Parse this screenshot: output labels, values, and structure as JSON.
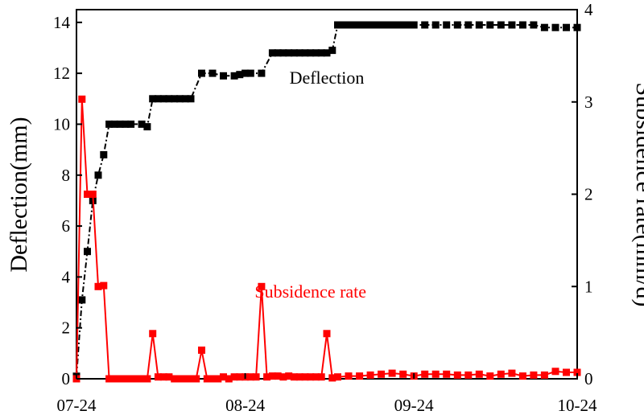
{
  "chart_data": {
    "type": "line",
    "x_tick_labels": [
      "07-24",
      "08-24",
      "09-24",
      "10-24"
    ],
    "x_tick_days": [
      0,
      31,
      62,
      92
    ],
    "x_range": [
      0,
      92
    ],
    "left_axis": {
      "label": "Deflection(mm)",
      "ylim": [
        0,
        14.5
      ],
      "ticks": [
        0,
        2,
        4,
        6,
        8,
        10,
        12,
        14
      ]
    },
    "right_axis": {
      "label": "Subsidence rate(mm/d)",
      "ylim": [
        0,
        4
      ],
      "ticks": [
        0,
        1,
        2,
        3,
        4
      ]
    },
    "grid": false,
    "series": [
      {
        "name": "Deflection",
        "axis": "left",
        "color": "#000000",
        "line_style": "dash-dot",
        "marker": "square",
        "x": [
          0,
          1,
          2,
          3,
          4,
          5,
          6,
          7,
          8,
          9,
          10,
          12,
          13,
          14,
          15,
          16,
          17,
          18,
          19,
          20,
          21,
          23,
          25,
          27,
          29,
          30,
          31,
          32,
          34,
          36,
          37,
          38,
          39,
          40,
          41,
          42,
          43,
          44,
          45,
          46,
          47,
          48,
          49,
          50,
          51,
          52,
          53,
          54,
          55,
          56,
          57,
          58,
          59,
          60,
          61,
          62,
          64,
          66,
          68,
          70,
          72,
          74,
          76,
          78,
          80,
          82,
          84,
          86,
          88,
          90,
          92
        ],
        "values": [
          0.1,
          3.1,
          5.0,
          7.0,
          8.0,
          8.8,
          10.0,
          10.0,
          10.0,
          10.0,
          10.0,
          10.0,
          9.9,
          11.0,
          11.0,
          11.0,
          11.0,
          11.0,
          11.0,
          11.0,
          11.0,
          12.0,
          12.0,
          11.9,
          11.9,
          11.95,
          12.0,
          12.0,
          12.0,
          12.8,
          12.8,
          12.8,
          12.8,
          12.8,
          12.8,
          12.8,
          12.8,
          12.8,
          12.8,
          12.8,
          12.9,
          13.9,
          13.9,
          13.9,
          13.9,
          13.9,
          13.9,
          13.9,
          13.9,
          13.9,
          13.9,
          13.9,
          13.9,
          13.9,
          13.9,
          13.9,
          13.9,
          13.9,
          13.9,
          13.9,
          13.9,
          13.9,
          13.9,
          13.9,
          13.9,
          13.9,
          13.9,
          13.8,
          13.8,
          13.8,
          13.8
        ]
      },
      {
        "name": "Subsidence rate",
        "axis": "right",
        "color": "#ff0000",
        "line_style": "solid",
        "marker": "square",
        "x": [
          0,
          1,
          2,
          3,
          4,
          5,
          6,
          7,
          8,
          9,
          10,
          11,
          12,
          13,
          14,
          15,
          16,
          17,
          18,
          19,
          20,
          21,
          22,
          23,
          24,
          25,
          26,
          27,
          28,
          29,
          30,
          31,
          32,
          33,
          34,
          35,
          36,
          37,
          38,
          39,
          40,
          41,
          42,
          43,
          44,
          45,
          46,
          47,
          48,
          50,
          52,
          54,
          56,
          58,
          60,
          62,
          64,
          66,
          68,
          70,
          72,
          74,
          76,
          78,
          80,
          82,
          84,
          86,
          88,
          90,
          92
        ],
        "values": [
          0.0,
          3.03,
          2.0,
          2.0,
          1.0,
          1.01,
          0.0,
          0.0,
          0.0,
          0.0,
          0.0,
          0.0,
          0.0,
          0.0,
          0.49,
          0.02,
          0.02,
          0.02,
          0.0,
          0.0,
          0.0,
          0.0,
          0.0,
          0.31,
          0.0,
          0.0,
          0.0,
          0.02,
          0.0,
          0.02,
          0.02,
          0.02,
          0.02,
          0.02,
          1.0,
          0.02,
          0.03,
          0.03,
          0.02,
          0.03,
          0.02,
          0.02,
          0.02,
          0.02,
          0.02,
          0.02,
          0.49,
          0.01,
          0.02,
          0.03,
          0.03,
          0.04,
          0.05,
          0.06,
          0.05,
          0.03,
          0.05,
          0.05,
          0.05,
          0.04,
          0.04,
          0.05,
          0.03,
          0.05,
          0.06,
          0.03,
          0.04,
          0.04,
          0.08,
          0.07,
          0.07
        ]
      }
    ],
    "annotations": [
      {
        "text": "Deflection",
        "color": "#000000",
        "at_day": 46,
        "at_value": 11.6,
        "axis": "left"
      },
      {
        "text": "Subsidence rate",
        "color": "#ff0000",
        "at_day": 43,
        "at_value": 0.88,
        "axis": "right"
      }
    ]
  }
}
